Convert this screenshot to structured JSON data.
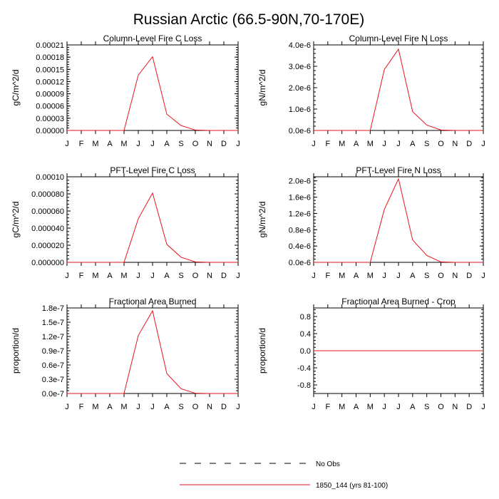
{
  "figure": {
    "title": "Russian Arctic (66.5-90N,70-170E)"
  },
  "chart_data": [
    {
      "type": "line",
      "title": "Column-Level Fire C Loss",
      "ylabel": "gC/m^2/d",
      "xlabel": "",
      "ylim": [
        0,
        0.00021
      ],
      "yticks": [
        0,
        3e-05,
        6e-05,
        9e-05,
        0.00012,
        0.00015,
        0.00018,
        0.00021
      ],
      "ytick_labels": [
        "0.00000",
        "0.00003",
        "0.00006",
        "0.00009",
        "0.00012",
        "0.00015",
        "0.00018",
        "0.00021"
      ],
      "categories": [
        "J",
        "F",
        "M",
        "A",
        "M",
        "J",
        "J",
        "A",
        "S",
        "O",
        "N",
        "D",
        "J"
      ],
      "series": [
        {
          "name": "1850_144 (yrs 81-100)",
          "color": "#e8141b",
          "values": [
            0,
            0,
            0,
            0,
            0,
            0.000136,
            0.000181,
            4e-05,
            1.2e-05,
            1e-06,
            0,
            0,
            0
          ]
        }
      ]
    },
    {
      "type": "line",
      "title": "Column-Level Fire N Loss",
      "ylabel": "gN/m^2/d",
      "xlabel": "",
      "ylim": [
        0,
        4e-06
      ],
      "yticks": [
        0,
        1e-06,
        2e-06,
        3e-06,
        4e-06
      ],
      "ytick_labels": [
        "0.0e-6",
        "1.0e-6",
        "2.0e-6",
        "3.0e-6",
        "4.0e-6"
      ],
      "categories": [
        "J",
        "F",
        "M",
        "A",
        "M",
        "J",
        "J",
        "A",
        "S",
        "O",
        "N",
        "D",
        "J"
      ],
      "series": [
        {
          "name": "1850_144 (yrs 81-100)",
          "color": "#e8141b",
          "values": [
            0,
            0,
            0,
            0,
            0,
            2.85e-06,
            3.8e-06,
            8.8e-07,
            2.5e-07,
            2e-08,
            0,
            0,
            0
          ]
        }
      ]
    },
    {
      "type": "line",
      "title": "PFT-Level Fire C Loss",
      "ylabel": "gC/m^2/d",
      "xlabel": "",
      "ylim": [
        0,
        0.0001
      ],
      "yticks": [
        0,
        2e-05,
        4e-05,
        6e-05,
        8e-05,
        0.0001
      ],
      "ytick_labels": [
        "0.000000",
        "0.000020",
        "0.000040",
        "0.000060",
        "0.000080",
        "0.00010"
      ],
      "categories": [
        "J",
        "F",
        "M",
        "A",
        "M",
        "J",
        "J",
        "A",
        "S",
        "O",
        "N",
        "D",
        "J"
      ],
      "series": [
        {
          "name": "1850_144 (yrs 81-100)",
          "color": "#e8141b",
          "values": [
            0,
            0,
            0,
            0,
            0,
            5.1e-05,
            8.1e-05,
            2.1e-05,
            6e-06,
            5e-07,
            0,
            0,
            0
          ]
        }
      ]
    },
    {
      "type": "line",
      "title": "PFT-Level Fire N Loss",
      "ylabel": "gN/m^2/d",
      "xlabel": "",
      "ylim": [
        0,
        2.1e-06
      ],
      "yticks": [
        0,
        4e-07,
        8e-07,
        1.2e-06,
        1.6e-06,
        2e-06
      ],
      "ytick_labels": [
        "0.0e-6",
        "0.4e-6",
        "0.8e-6",
        "1.2e-6",
        "1.6e-6",
        "2.0e-6"
      ],
      "categories": [
        "J",
        "F",
        "M",
        "A",
        "M",
        "J",
        "J",
        "A",
        "S",
        "O",
        "N",
        "D",
        "J"
      ],
      "series": [
        {
          "name": "1850_144 (yrs 81-100)",
          "color": "#e8141b",
          "values": [
            0,
            0,
            0,
            0,
            0,
            1.3e-06,
            2.05e-06,
            5.5e-07,
            1.7e-07,
            1e-08,
            0,
            0,
            0
          ]
        }
      ]
    },
    {
      "type": "line",
      "title": "Fractional Area Burned",
      "ylabel": "proportion/d",
      "xlabel": "",
      "ylim": [
        0,
        1.8e-07
      ],
      "yticks": [
        0,
        3e-08,
        6e-08,
        9e-08,
        1.2e-07,
        1.5e-07,
        1.8e-07
      ],
      "ytick_labels": [
        "0.0e-7",
        "0.3e-7",
        "0.6e-7",
        "0.9e-7",
        "1.2e-7",
        "1.5e-7",
        "1.8e-7"
      ],
      "categories": [
        "J",
        "F",
        "M",
        "A",
        "M",
        "J",
        "J",
        "A",
        "S",
        "O",
        "N",
        "D",
        "J"
      ],
      "series": [
        {
          "name": "1850_144 (yrs 81-100)",
          "color": "#e8141b",
          "values": [
            0,
            0,
            0,
            0,
            0,
            1.22e-07,
            1.74e-07,
            4.2e-08,
            1e-08,
            5e-10,
            0,
            0,
            0
          ]
        }
      ]
    },
    {
      "type": "line",
      "title": "Fractional Area Burned - Crop",
      "ylabel": "proportion/d",
      "xlabel": "",
      "ylim": [
        -1.0,
        1.0
      ],
      "yticks": [
        -0.8,
        -0.4,
        0,
        0.4,
        0.8
      ],
      "ytick_labels": [
        "-0.8",
        "-0.4",
        "0.0",
        "0.4",
        "0.8"
      ],
      "categories": [
        "J",
        "F",
        "M",
        "A",
        "M",
        "J",
        "J",
        "A",
        "S",
        "O",
        "N",
        "D",
        "J"
      ],
      "series": [
        {
          "name": "1850_144 (yrs 81-100)",
          "color": "#e8141b",
          "values": [
            0,
            0,
            0,
            0,
            0,
            0,
            0,
            0,
            0,
            0,
            0,
            0,
            0
          ]
        }
      ]
    }
  ],
  "legend": {
    "placement": "bottom-center",
    "items": [
      {
        "label": "No Obs",
        "style": "dashed",
        "color": "#000000"
      },
      {
        "label": "1850_144 (yrs 81-100)",
        "style": "solid",
        "color": "#e8141b"
      }
    ]
  }
}
